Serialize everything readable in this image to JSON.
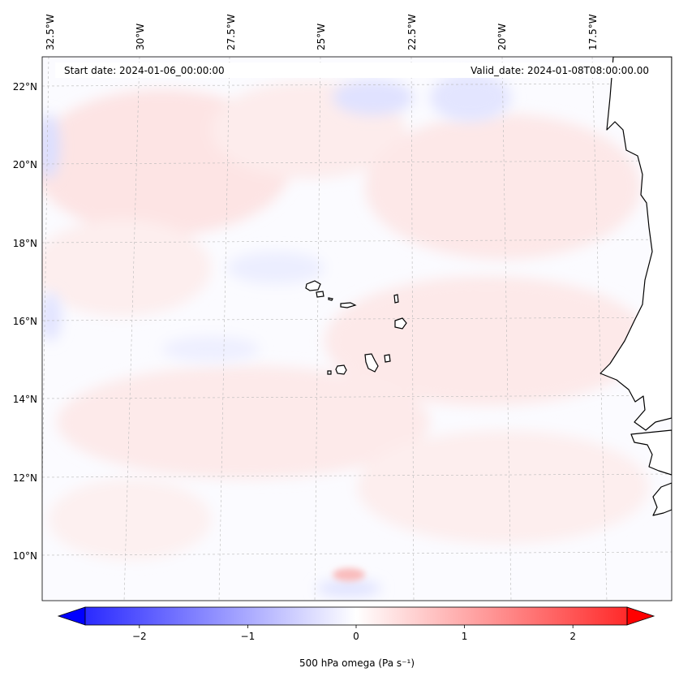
{
  "map": {
    "start_date_label": "Start date: 2024-01-06_00:00:00",
    "valid_date_label": "Valid_date: 2024-01-08T08:00:00.00",
    "longitude_labels": [
      "32.5°W",
      "30°W",
      "27.5°W",
      "25°W",
      "22.5°W",
      "20°W",
      "17.5°W"
    ],
    "latitude_labels": [
      "22°N",
      "20°N",
      "18°N",
      "16°N",
      "14°N",
      "12°N",
      "10°N"
    ],
    "land_color": "#ffffff",
    "coastline_color": "#000000",
    "gridline_color": "#b0b0b0",
    "field_positive_color": "#ff0000",
    "field_negative_color": "#0000ff",
    "field_zero_color": "#ffffff"
  },
  "colorbar": {
    "title": "500 hPa omega (Pa s⁻¹)",
    "min": -2.5,
    "max": 2.5,
    "tick_values": [
      -2,
      -1,
      0,
      1,
      2
    ],
    "tick_labels": [
      "−2",
      "−1",
      "0",
      "1",
      "2"
    ],
    "extend": "both",
    "colormap": "bwr"
  }
}
